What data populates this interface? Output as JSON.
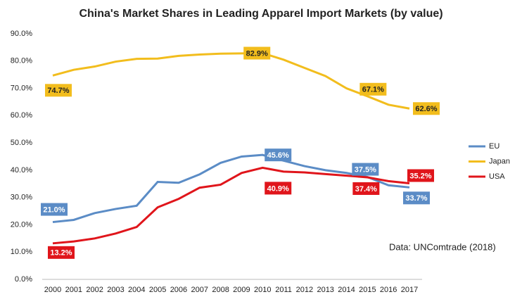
{
  "chart_data": {
    "type": "line",
    "title": "China's Market Shares in Leading Apparel Import Markets (by value)",
    "annotation": "Data: UNComtrade (2018)",
    "categories": [
      "2000",
      "2001",
      "2002",
      "2003",
      "2004",
      "2005",
      "2006",
      "2007",
      "2008",
      "2009",
      "2010",
      "2011",
      "2012",
      "2013",
      "2014",
      "2015",
      "2016",
      "2017"
    ],
    "ylim": [
      0,
      90
    ],
    "yticks": [
      {
        "value": 0,
        "label": "0.0%"
      },
      {
        "value": 10,
        "label": "10.0%"
      },
      {
        "value": 20,
        "label": "20.0%"
      },
      {
        "value": 30,
        "label": "30.0%"
      },
      {
        "value": 40,
        "label": "40.0%"
      },
      {
        "value": 50,
        "label": "50.0%"
      },
      {
        "value": 60,
        "label": "60.0%"
      },
      {
        "value": 70,
        "label": "70.0%"
      },
      {
        "value": 80,
        "label": "80.0%"
      },
      {
        "value": 90,
        "label": "90.0%"
      }
    ],
    "legend": "right",
    "series": [
      {
        "name": "EU",
        "color": "#5b8cc6",
        "values": [
          21.0,
          21.8,
          24.3,
          25.8,
          27.0,
          35.7,
          35.4,
          38.5,
          42.7,
          45.0,
          45.6,
          43.5,
          41.5,
          40.0,
          39.0,
          37.5,
          34.5,
          33.7
        ],
        "value_labels": [
          "21.0%",
          null,
          null,
          null,
          null,
          null,
          null,
          null,
          null,
          null,
          "45.6%",
          null,
          null,
          null,
          null,
          "37.5%",
          null,
          "33.7%"
        ]
      },
      {
        "name": "Japan",
        "color": "#f2bd1d",
        "values": [
          74.7,
          76.8,
          78.0,
          79.8,
          80.8,
          80.9,
          81.9,
          82.4,
          82.7,
          82.8,
          82.9,
          80.5,
          77.5,
          74.5,
          70.0,
          67.1,
          64.0,
          62.6
        ],
        "value_labels": [
          "74.7%",
          null,
          null,
          null,
          null,
          null,
          null,
          null,
          null,
          null,
          "82.9%",
          null,
          null,
          null,
          null,
          "67.1%",
          null,
          "62.6%"
        ]
      },
      {
        "name": "USA",
        "color": "#e0151b",
        "values": [
          13.2,
          13.9,
          15.0,
          16.8,
          19.2,
          26.4,
          29.5,
          33.6,
          34.7,
          39.0,
          40.9,
          39.5,
          39.2,
          38.6,
          38.0,
          37.4,
          36.0,
          35.2
        ],
        "value_labels": [
          "13.2%",
          null,
          null,
          null,
          null,
          null,
          null,
          null,
          null,
          null,
          "40.9%",
          null,
          null,
          null,
          null,
          "37.4%",
          null,
          "35.2%"
        ]
      }
    ]
  }
}
